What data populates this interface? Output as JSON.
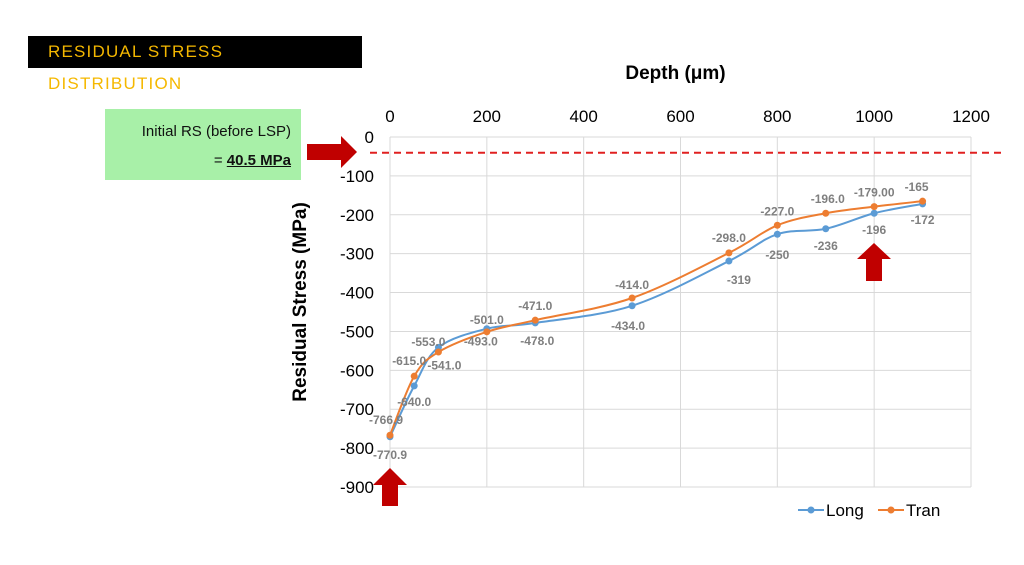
{
  "title": "RESIDUAL STRESS DISTRIBUTION",
  "callout": {
    "line1": "Initial RS (before LSP)",
    "eq": "= ",
    "value": "40.5 MPa"
  },
  "colors": {
    "long": "#5b9bd5",
    "tran": "#ed7d31",
    "arrow": "#c00000",
    "title_bg": "#000000",
    "title_fg": "#f5b800",
    "callout_bg": "#a8f0a8",
    "reference_line": "#e02020"
  },
  "chart_data": {
    "type": "line",
    "xlabel": "Depth (μm)",
    "ylabel": "Residual Stress (MPa)",
    "xlim": [
      0,
      1200
    ],
    "ylim": [
      -900,
      0
    ],
    "x_ticks": [
      0,
      200,
      400,
      600,
      800,
      1000,
      1200
    ],
    "y_ticks": [
      0,
      -100,
      -200,
      -300,
      -400,
      -500,
      -600,
      -700,
      -800,
      -900
    ],
    "x_axis_position": "top",
    "grid": true,
    "legend_position": "bottom-right",
    "reference_line": {
      "y": -40.5,
      "style": "dashed"
    },
    "series": [
      {
        "name": "Long",
        "color": "#5b9bd5",
        "x": [
          0,
          50,
          100,
          200,
          300,
          500,
          700,
          800,
          900,
          1000,
          1100
        ],
        "y": [
          -770.9,
          -640.0,
          -541.0,
          -493.0,
          -478.0,
          -434.0,
          -319,
          -250,
          -236,
          -196,
          -172
        ],
        "labels": [
          "-770.9",
          "-640.0",
          "-541.0",
          "-493.0",
          "-478.0",
          "-434.0",
          "-319",
          "-250",
          "-236",
          "-196",
          "-172"
        ]
      },
      {
        "name": "Tran",
        "color": "#ed7d31",
        "x": [
          0,
          50,
          100,
          200,
          300,
          500,
          700,
          800,
          900,
          1000,
          1100
        ],
        "y": [
          -766.9,
          -615.0,
          -553.0,
          -501.0,
          -471.0,
          -414.0,
          -298.0,
          -227.0,
          -196.0,
          -179.0,
          -165
        ],
        "labels": [
          "-766.9",
          "-615.0",
          "-553.0",
          "-501.0",
          "-471.0",
          "-414.0",
          "-298.0",
          "-227.0",
          "-196.0",
          "-179.00",
          "-165"
        ]
      }
    ]
  }
}
